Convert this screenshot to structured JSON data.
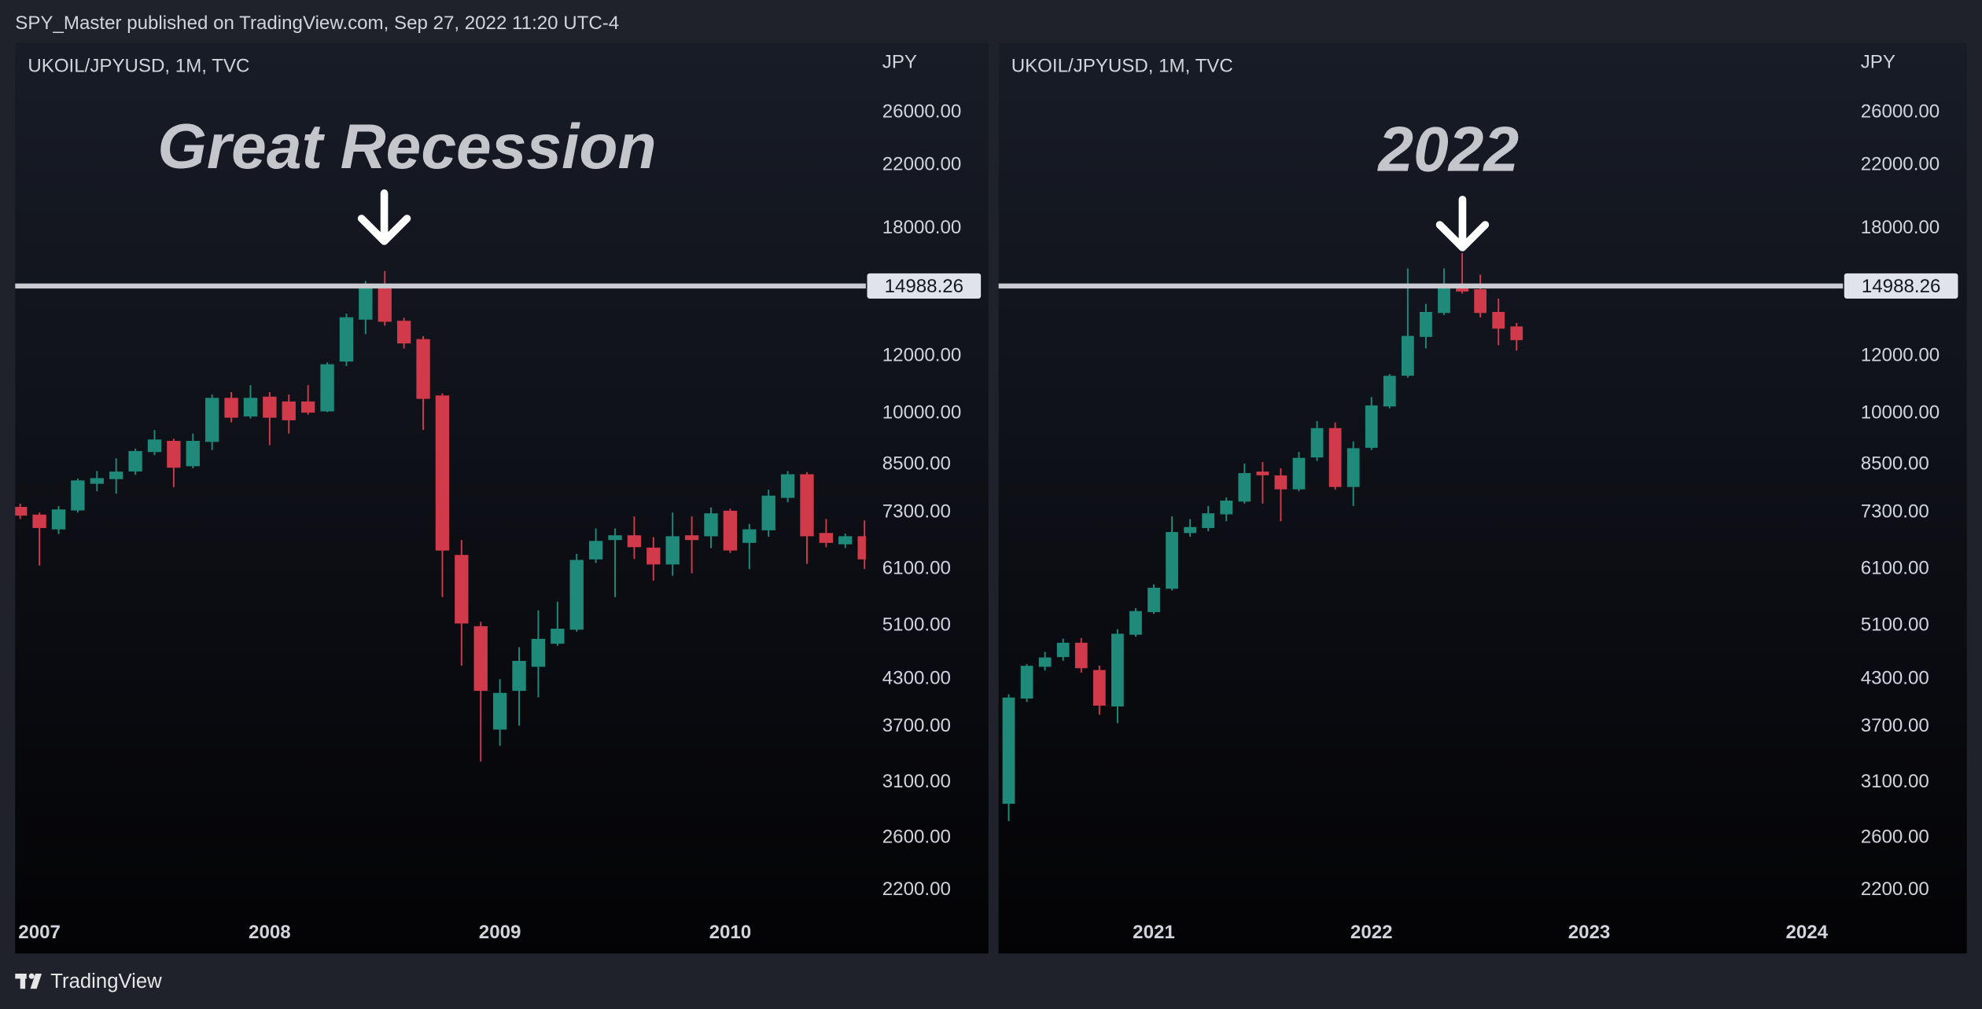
{
  "header": {
    "text": "SPY_Master published on TradingView.com, Sep 27, 2022 11:20 UTC-4"
  },
  "footer": {
    "brand": "TradingView"
  },
  "chart_data": [
    {
      "type": "candlestick",
      "symbol": "UKOIL/JPYUSD, 1M, TVC",
      "currency": "JPY",
      "annotation": "Great Recession",
      "log": true,
      "grid": false,
      "up_color": "#1f8a7a",
      "down_color": "#d03a4a",
      "hline": 14988.26,
      "ylim": [
        2030,
        32300
      ],
      "yticks": [
        {
          "value": 26000,
          "label": "26000.00"
        },
        {
          "value": 22000,
          "label": "22000.00"
        },
        {
          "value": 18000,
          "label": "18000.00"
        },
        {
          "value": 12000,
          "label": "12000.00"
        },
        {
          "value": 10000,
          "label": "10000.00"
        },
        {
          "value": 8500,
          "label": "8500.00"
        },
        {
          "value": 7300,
          "label": "7300.00"
        },
        {
          "value": 6100,
          "label": "6100.00"
        },
        {
          "value": 5100,
          "label": "5100.00"
        },
        {
          "value": 4300,
          "label": "4300.00"
        },
        {
          "value": 3700,
          "label": "3700.00"
        },
        {
          "value": 3100,
          "label": "3100.00"
        },
        {
          "value": 2600,
          "label": "2600.00"
        },
        {
          "value": 2200,
          "label": "2200.00"
        }
      ],
      "categories": [
        null,
        "2007",
        null,
        null,
        null,
        null,
        null,
        null,
        null,
        null,
        null,
        null,
        null,
        "2008",
        null,
        null,
        null,
        null,
        null,
        null,
        null,
        null,
        null,
        null,
        null,
        "2009",
        null,
        null,
        null,
        null,
        null,
        null,
        null,
        null,
        null,
        null,
        null,
        "2010",
        null,
        null,
        null,
        null,
        null,
        null,
        null
      ],
      "open": [
        7420,
        7240,
        6930,
        7360,
        8010,
        8130,
        8330,
        8860,
        9150,
        8470,
        9150,
        10490,
        9920,
        10530,
        10370,
        10370,
        10080,
        11810,
        13490,
        14930,
        13400,
        12640,
        10570,
        6370,
        5080,
        3670,
        4150,
        4480,
        4820,
        5040,
        6300,
        6700,
        6780,
        6520,
        6200,
        6780,
        6780,
        7330,
        6640,
        6910,
        7660,
        8230,
        6830,
        6610,
        6760
      ],
      "high": [
        7510,
        7300,
        7450,
        8130,
        8330,
        8670,
        8940,
        9490,
        9230,
        9380,
        10620,
        10700,
        10940,
        10700,
        10620,
        10940,
        11760,
        13730,
        15230,
        15720,
        13550,
        12780,
        10660,
        6690,
        5160,
        4300,
        4760,
        5350,
        5500,
        6400,
        6940,
        6940,
        7210,
        6750,
        7300,
        7210,
        7420,
        7390,
        7040,
        7850,
        8330,
        8300,
        7150,
        6830,
        7120
      ],
      "low": [
        7150,
        6170,
        6820,
        7300,
        7810,
        7750,
        8230,
        8760,
        7910,
        8400,
        8900,
        9720,
        9840,
        9040,
        9380,
        9960,
        10040,
        11620,
        12860,
        13210,
        12290,
        9490,
        5580,
        4490,
        3310,
        3480,
        3710,
        4060,
        4780,
        5000,
        6220,
        5580,
        6300,
        5880,
        5970,
        6020,
        6520,
        6420,
        6100,
        6760,
        7540,
        6200,
        6540,
        6520,
        6100
      ],
      "close": [
        7240,
        6960,
        7360,
        8070,
        8130,
        8300,
        8860,
        9190,
        8430,
        9150,
        10490,
        9880,
        10490,
        9880,
        9800,
        10040,
        11670,
        13550,
        14930,
        13400,
        12510,
        10490,
        6480,
        5140,
        4150,
        4110,
        4550,
        4880,
        5040,
        6270,
        6660,
        6780,
        6550,
        6200,
        6760,
        6700,
        7270,
        6480,
        6910,
        7690,
        8230,
        6780,
        6640,
        6760,
        6300
      ]
    },
    {
      "type": "candlestick",
      "symbol": "UKOIL/JPYUSD, 1M, TVC",
      "currency": "JPY",
      "annotation": "2022",
      "log": true,
      "grid": false,
      "up_color": "#1f8a7a",
      "down_color": "#d03a4a",
      "hline": 14988.26,
      "ylim": [
        2030,
        32300
      ],
      "yticks": [
        {
          "value": 26000,
          "label": "26000.00"
        },
        {
          "value": 22000,
          "label": "22000.00"
        },
        {
          "value": 18000,
          "label": "18000.00"
        },
        {
          "value": 12000,
          "label": "12000.00"
        },
        {
          "value": 10000,
          "label": "10000.00"
        },
        {
          "value": 8500,
          "label": "8500.00"
        },
        {
          "value": 7300,
          "label": "7300.00"
        },
        {
          "value": 6100,
          "label": "6100.00"
        },
        {
          "value": 5100,
          "label": "5100.00"
        },
        {
          "value": 4300,
          "label": "4300.00"
        },
        {
          "value": 3700,
          "label": "3700.00"
        },
        {
          "value": 3100,
          "label": "3100.00"
        },
        {
          "value": 2600,
          "label": "2600.00"
        },
        {
          "value": 2200,
          "label": "2200.00"
        }
      ],
      "categories": [
        null,
        null,
        null,
        null,
        null,
        null,
        null,
        null,
        "2021",
        null,
        null,
        null,
        null,
        null,
        null,
        null,
        null,
        null,
        null,
        null,
        "2022",
        null,
        null,
        null,
        null,
        null,
        null,
        null,
        null,
        null,
        null,
        null,
        "2023",
        null,
        null,
        null,
        null,
        null,
        null,
        null,
        null,
        null,
        null,
        null,
        "2024"
      ],
      "open": [
        2900,
        4050,
        4480,
        4620,
        4820,
        4420,
        3950,
        4960,
        5330,
        5740,
        6850,
        6960,
        7270,
        7570,
        8300,
        8200,
        7870,
        8710,
        9530,
        7930,
        8980,
        10240,
        11290,
        12770,
        13780,
        14930,
        14810,
        13780,
        13160,
        null,
        null,
        null,
        null,
        null,
        null,
        null,
        null,
        null,
        null,
        null,
        null,
        null,
        null,
        null,
        null
      ],
      "high": [
        4100,
        4510,
        4690,
        4890,
        4900,
        4490,
        5040,
        5390,
        5810,
        7210,
        7150,
        7450,
        7660,
        8530,
        8570,
        8400,
        8850,
        9760,
        9720,
        9150,
        10530,
        11330,
        15850,
        14160,
        15850,
        16640,
        15540,
        14400,
        13330,
        null,
        null,
        null,
        null,
        null,
        null,
        null,
        null,
        null,
        null,
        null,
        null,
        null,
        null,
        null,
        null
      ],
      "low": [
        2740,
        4000,
        4420,
        4560,
        4390,
        3840,
        3740,
        4920,
        5290,
        5700,
        6760,
        6880,
        7100,
        7510,
        7510,
        7100,
        7810,
        8600,
        7850,
        7450,
        8900,
        10160,
        11200,
        12290,
        13670,
        14630,
        13560,
        12420,
        12210,
        null,
        null,
        null,
        null,
        null,
        null,
        null,
        null,
        null,
        null,
        null,
        null,
        null,
        null,
        null,
        null
      ],
      "close": [
        4050,
        4480,
        4600,
        4820,
        4460,
        3960,
        4960,
        5330,
        5740,
        6850,
        6960,
        7270,
        7570,
        8260,
        8230,
        7870,
        8670,
        9530,
        7930,
        8940,
        10240,
        11250,
        12770,
        13780,
        14870,
        14750,
        13780,
        13110,
        12640,
        null,
        null,
        null,
        null,
        null,
        null,
        null,
        null,
        null,
        null,
        null,
        null,
        null,
        null,
        null,
        null
      ]
    }
  ]
}
